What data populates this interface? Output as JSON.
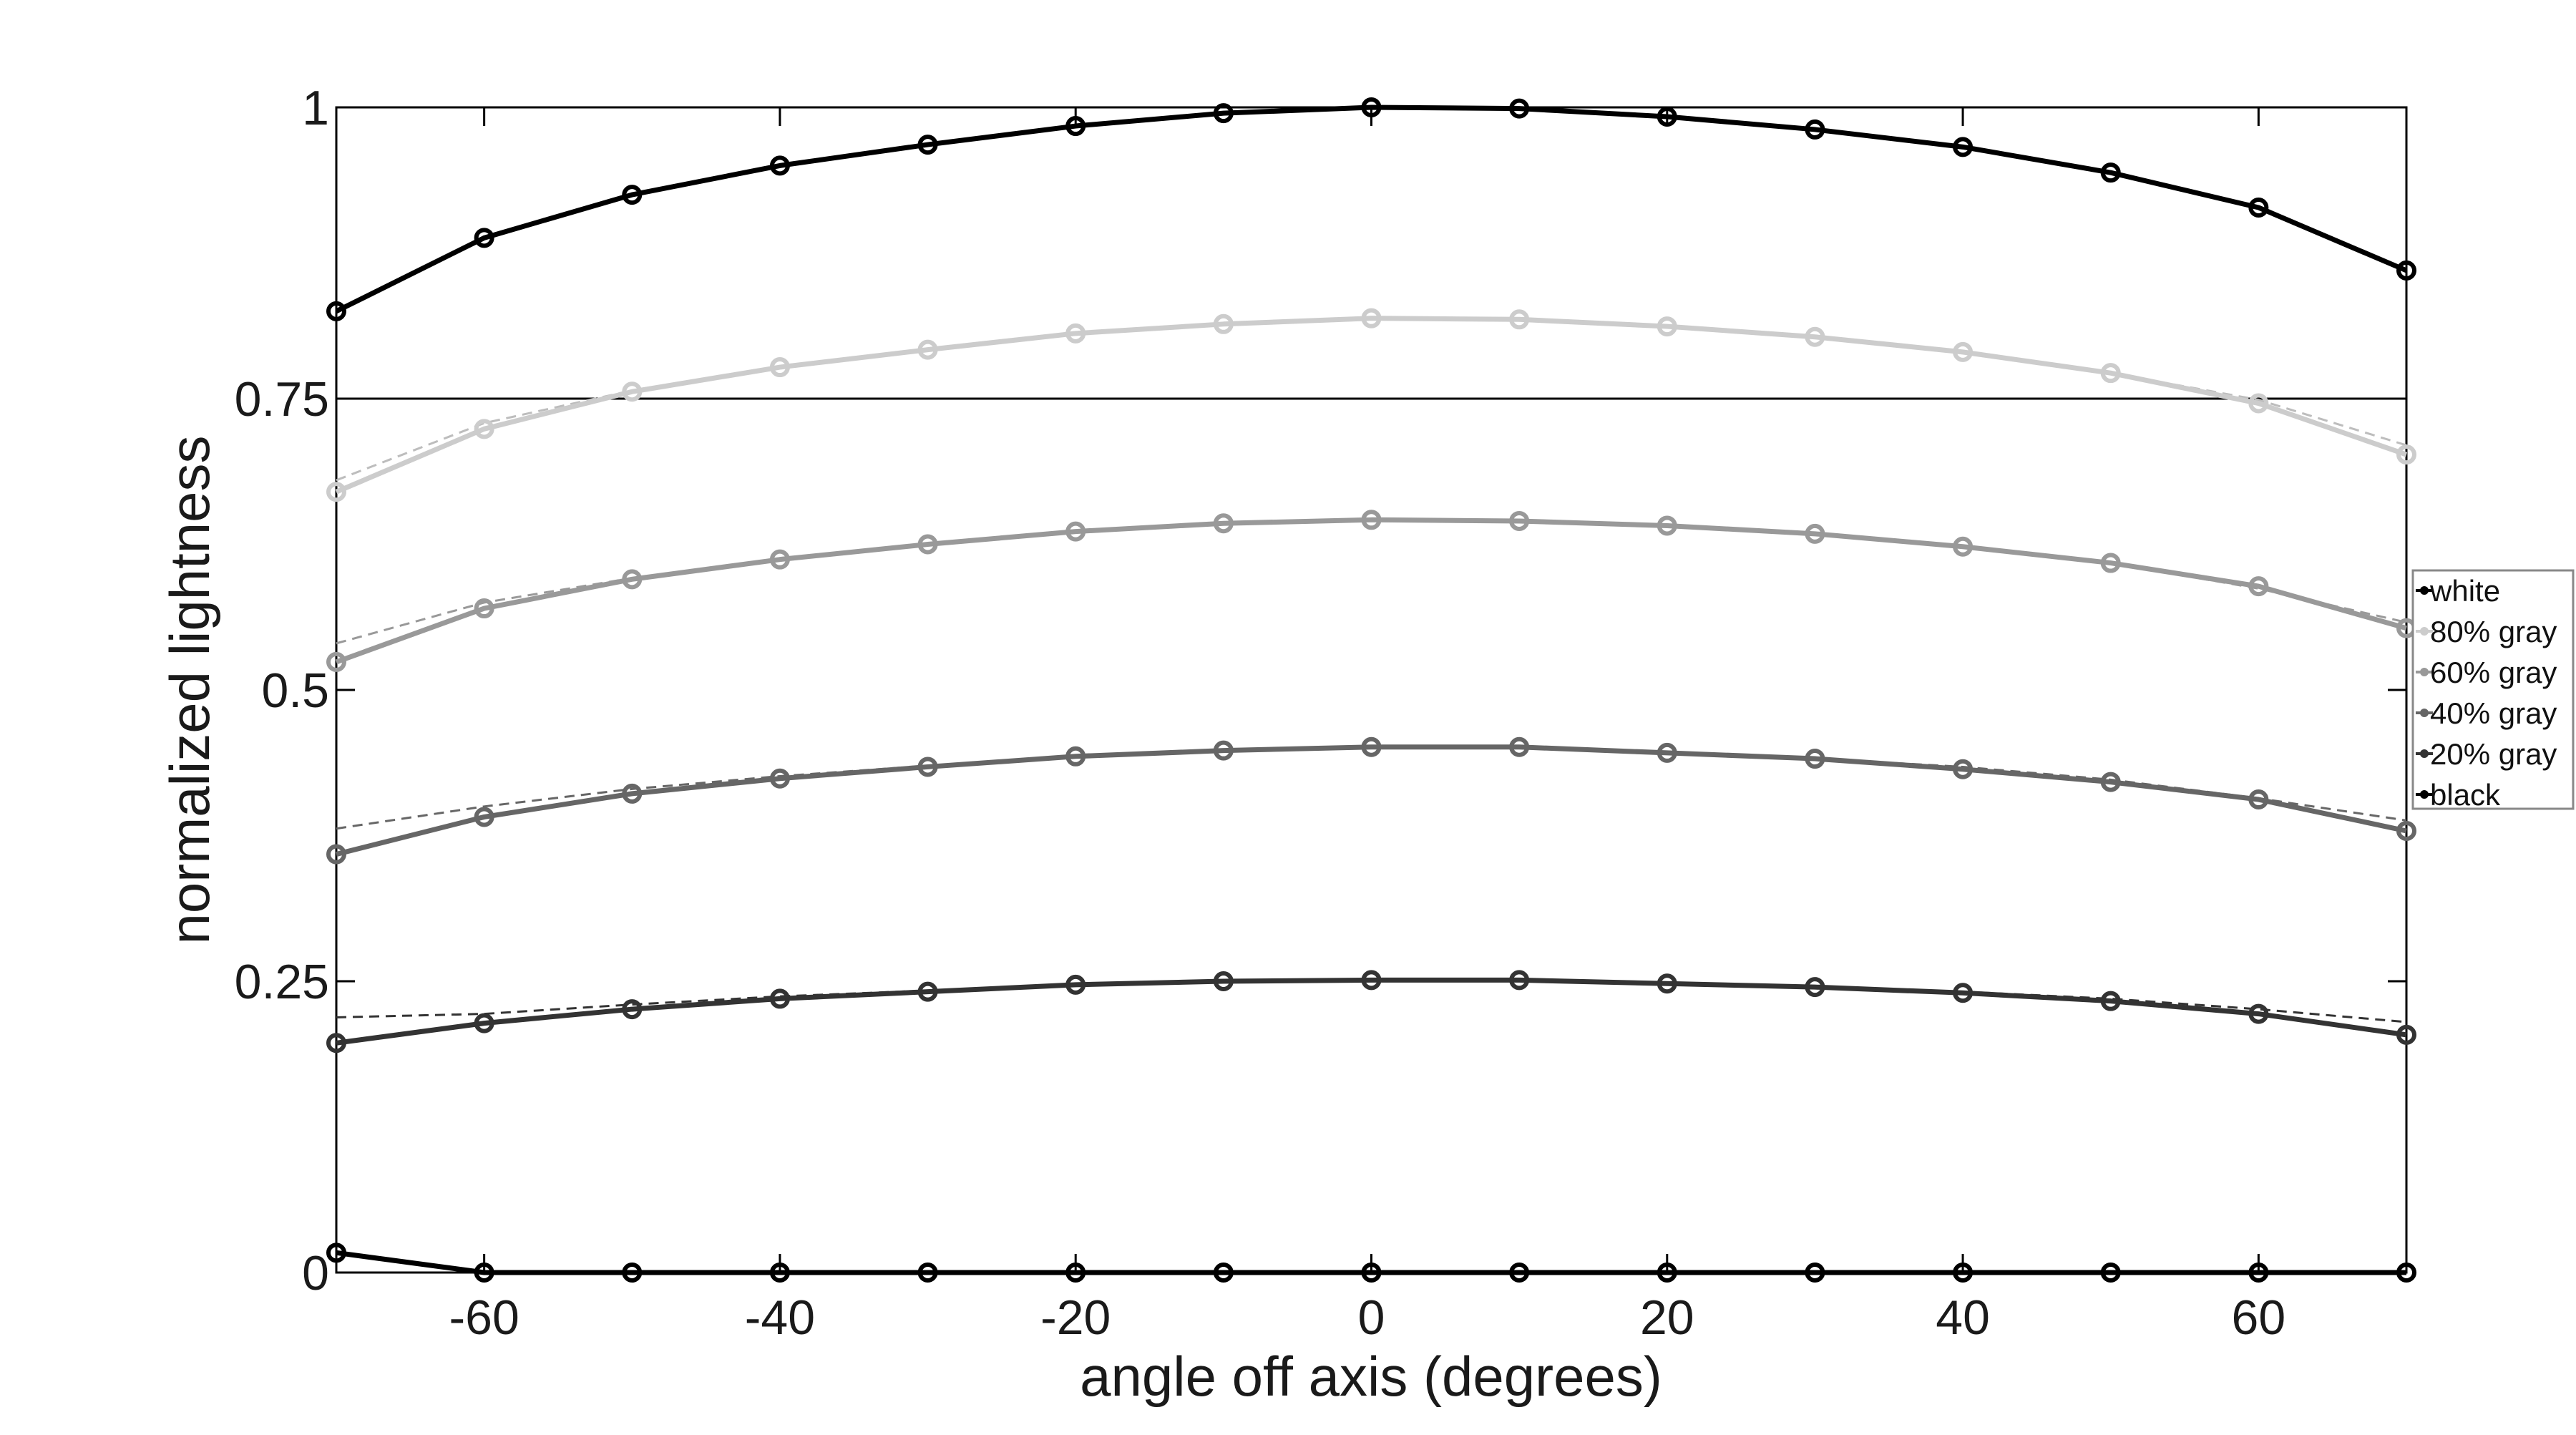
{
  "chart_data": {
    "type": "line",
    "title": "",
    "xlabel": "angle off axis (degrees)",
    "ylabel": "normalized lightness",
    "xlim": [
      -70,
      70
    ],
    "ylim": [
      0,
      1
    ],
    "x_ticks": [
      -60,
      -40,
      -20,
      0,
      20,
      40,
      60
    ],
    "x_tick_labels": [
      "-60",
      "-40",
      "-20",
      "0",
      "20",
      "40",
      "60"
    ],
    "y_ticks": [
      0,
      0.25,
      0.5,
      0.75,
      1
    ],
    "y_tick_labels": [
      "0",
      "0.25",
      "0.5",
      "0.75",
      "1"
    ],
    "reference_line": {
      "y": 0.75
    },
    "grid": false,
    "legend_position": "right",
    "x": [
      -70,
      -60,
      -50,
      -40,
      -30,
      -20,
      -10,
      0,
      10,
      20,
      30,
      40,
      50,
      60,
      70
    ],
    "series": [
      {
        "name": "white",
        "color": "#000000",
        "values": [
          0.825,
          0.888,
          0.925,
          0.95,
          0.968,
          0.984,
          0.995,
          1.0,
          0.999,
          0.992,
          0.981,
          0.966,
          0.944,
          0.914,
          0.86
        ],
        "fit": null
      },
      {
        "name": "80% gray",
        "color": "#cccccc",
        "values": [
          0.67,
          0.724,
          0.756,
          0.777,
          0.792,
          0.806,
          0.814,
          0.819,
          0.818,
          0.812,
          0.803,
          0.79,
          0.772,
          0.746,
          0.702
        ],
        "fit": [
          0.68,
          0.729,
          0.757,
          0.777,
          0.792,
          0.806,
          0.814,
          0.819,
          0.818,
          0.812,
          0.803,
          0.79,
          0.772,
          0.749,
          0.71
        ]
      },
      {
        "name": "60% gray",
        "color": "#999999",
        "values": [
          0.524,
          0.57,
          0.595,
          0.612,
          0.625,
          0.636,
          0.643,
          0.646,
          0.645,
          0.641,
          0.634,
          0.623,
          0.609,
          0.589,
          0.553
        ],
        "fit": [
          0.54,
          0.575,
          0.596,
          0.612,
          0.625,
          0.636,
          0.643,
          0.646,
          0.645,
          0.641,
          0.634,
          0.623,
          0.609,
          0.587,
          0.558
        ]
      },
      {
        "name": "40% gray",
        "color": "#666666",
        "values": [
          0.359,
          0.391,
          0.411,
          0.424,
          0.434,
          0.443,
          0.448,
          0.451,
          0.451,
          0.446,
          0.441,
          0.432,
          0.421,
          0.406,
          0.379
        ],
        "fit": [
          0.381,
          0.4,
          0.415,
          0.426,
          0.435,
          0.443,
          0.448,
          0.451,
          0.451,
          0.446,
          0.441,
          0.434,
          0.423,
          0.407,
          0.388
        ]
      },
      {
        "name": "20% gray",
        "color": "#333333",
        "values": [
          0.197,
          0.214,
          0.226,
          0.235,
          0.241,
          0.247,
          0.25,
          0.251,
          0.251,
          0.248,
          0.245,
          0.24,
          0.233,
          0.222,
          0.204
        ],
        "fit": [
          0.219,
          0.222,
          0.23,
          0.237,
          0.242,
          0.247,
          0.25,
          0.251,
          0.251,
          0.248,
          0.245,
          0.241,
          0.235,
          0.226,
          0.215
        ]
      },
      {
        "name": "black",
        "color": "#000000",
        "values": [
          0.017,
          0.0,
          0.0,
          0.0,
          0.0,
          0.0,
          0.0,
          0.0,
          0.0,
          0.0,
          0.0,
          0.0,
          0.0,
          0.0,
          0.0
        ],
        "fit": null
      }
    ]
  }
}
